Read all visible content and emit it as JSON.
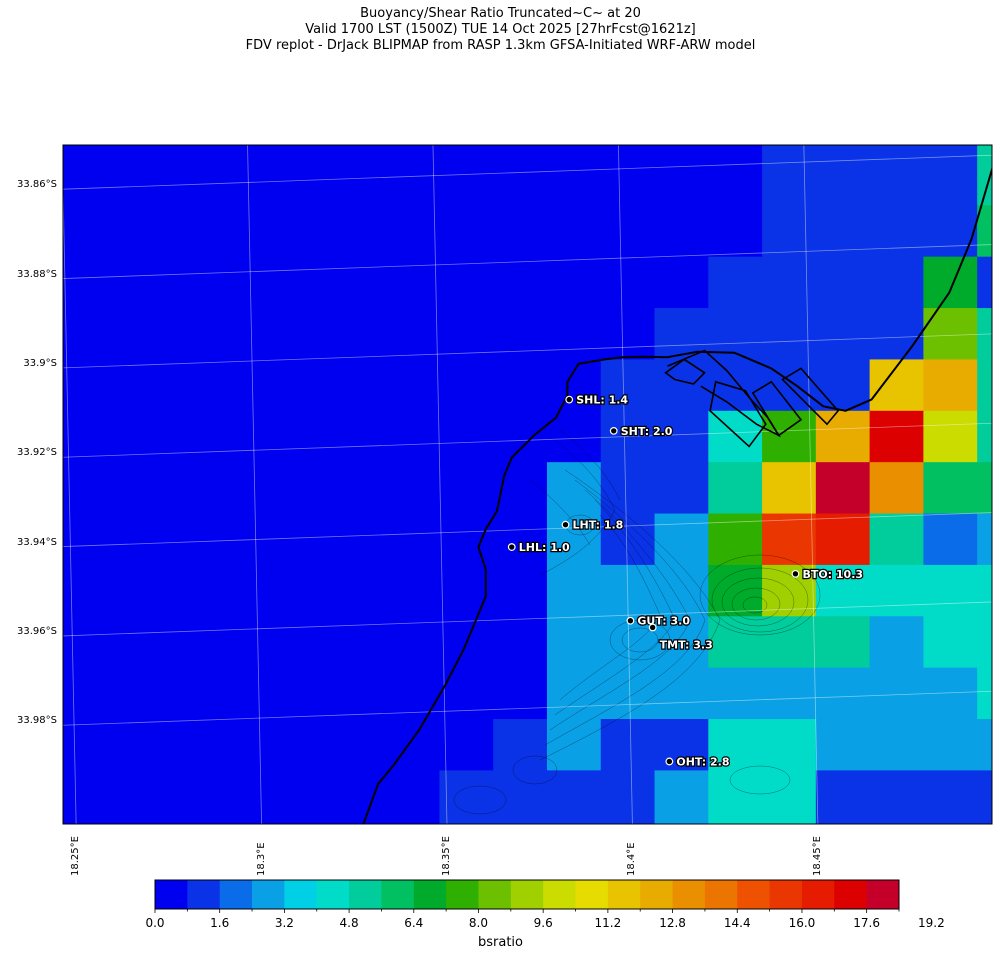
{
  "title_lines": [
    "Buoyancy/Shear Ratio Truncated~C~    at 20",
    "Valid 1700 LST (1500Z) TUE 14 Oct 2025 [27hrFcst@1621z]",
    "FDV replot - DrJack BLIPMAP from RASP 1.3km GFSA-Initiated WRF-ARW model"
  ],
  "map": {
    "lat_ticks": [
      "33.86°S",
      "33.88°S",
      "33.9°S",
      "33.92°S",
      "33.94°S",
      "33.96°S",
      "33.98°S"
    ],
    "lon_ticks": [
      "18.25°E",
      "18.3°E",
      "18.35°E",
      "18.4°E",
      "18.45°E"
    ],
    "extent": {
      "lon_min": 18.247,
      "lon_max": 18.4975,
      "lat_top": -33.851,
      "lat_bottom": -34.003
    },
    "grid_columns_lon": [
      18.247,
      18.2615,
      18.276,
      18.2905,
      18.305,
      18.3195,
      18.334,
      18.3485,
      18.363,
      18.3775,
      18.392,
      18.4065,
      18.421,
      18.4355,
      18.45,
      18.4645,
      18.479,
      18.4935,
      18.4975
    ],
    "grid_rows_lat": [
      -33.851,
      -33.853,
      -33.8645,
      -33.876,
      -33.8875,
      -33.899,
      -33.9105,
      -33.922,
      -33.9335,
      -33.945,
      -33.9565,
      -33.968,
      -33.9795,
      -33.991,
      -34.003
    ],
    "cells": [
      [
        0,
        0,
        0,
        0,
        0,
        0,
        0,
        0,
        0,
        0,
        0,
        0,
        0,
        1,
        1,
        1,
        1,
        6
      ],
      [
        0,
        0,
        0,
        0,
        0,
        0,
        0,
        0,
        0,
        0,
        0,
        0,
        0,
        1,
        1,
        1,
        1,
        6
      ],
      [
        0,
        0,
        0,
        0,
        0,
        0,
        0,
        0,
        0,
        0,
        0,
        0,
        0,
        1,
        1,
        1,
        1,
        7
      ],
      [
        0,
        0,
        0,
        0,
        0,
        0,
        0,
        0,
        0,
        0,
        0,
        0,
        1,
        1,
        1,
        1,
        8,
        1
      ],
      [
        0,
        0,
        0,
        0,
        0,
        0,
        0,
        0,
        0,
        0,
        0,
        1,
        1,
        1,
        1,
        1,
        10,
        6
      ],
      [
        0,
        0,
        0,
        0,
        0,
        0,
        0,
        0,
        0,
        0,
        1,
        1,
        1,
        1,
        1,
        14,
        15,
        6
      ],
      [
        0,
        0,
        0,
        0,
        0,
        0,
        0,
        0,
        0,
        0,
        1,
        1,
        5,
        9,
        15,
        21,
        12,
        6
      ],
      [
        0,
        0,
        0,
        0,
        0,
        0,
        0,
        0,
        0,
        3,
        1,
        1,
        6,
        14,
        22,
        16,
        7,
        7
      ],
      [
        0,
        0,
        0,
        0,
        0,
        0,
        0,
        0,
        0,
        3,
        1,
        3,
        9,
        19,
        20,
        6,
        2,
        3
      ],
      [
        0,
        0,
        0,
        0,
        0,
        0,
        0,
        0,
        0,
        3,
        3,
        3,
        8,
        11,
        5,
        5,
        5,
        5
      ],
      [
        0,
        0,
        0,
        0,
        0,
        0,
        0,
        0,
        0,
        3,
        3,
        3,
        6,
        6,
        6,
        3,
        5,
        5
      ],
      [
        0,
        0,
        0,
        0,
        0,
        0,
        0,
        0,
        0,
        3,
        3,
        3,
        3,
        3,
        3,
        3,
        3,
        5
      ],
      [
        0,
        0,
        0,
        0,
        0,
        0,
        0,
        0,
        1,
        3,
        1,
        1,
        5,
        5,
        3,
        3,
        3,
        3
      ],
      [
        0,
        0,
        0,
        0,
        0,
        0,
        0,
        1,
        1,
        1,
        1,
        3,
        5,
        5,
        1,
        1,
        1,
        1
      ]
    ],
    "coastline": [
      [
        18.498,
        -33.855
      ],
      [
        18.492,
        -33.872
      ],
      [
        18.486,
        -33.884
      ],
      [
        18.476,
        -33.896
      ],
      [
        18.465,
        -33.908
      ],
      [
        18.458,
        -33.9105
      ],
      [
        18.452,
        -33.9095
      ],
      [
        18.445,
        -33.905
      ],
      [
        18.438,
        -33.901
      ],
      [
        18.428,
        -33.8975
      ],
      [
        18.418,
        -33.8973
      ],
      [
        18.41,
        -33.8985
      ],
      [
        18.403,
        -33.8984
      ],
      [
        18.398,
        -33.8985
      ],
      [
        18.393,
        -33.899
      ],
      [
        18.386,
        -33.9
      ],
      [
        18.383,
        -33.904
      ],
      [
        18.383,
        -33.907
      ],
      [
        18.38,
        -33.912
      ],
      [
        18.374,
        -33.916
      ],
      [
        18.368,
        -33.921
      ],
      [
        18.366,
        -33.925
      ],
      [
        18.364,
        -33.933
      ],
      [
        18.361,
        -33.937
      ],
      [
        18.359,
        -33.941
      ],
      [
        18.361,
        -33.946
      ],
      [
        18.361,
        -33.952
      ],
      [
        18.358,
        -33.958
      ],
      [
        18.355,
        -33.964
      ],
      [
        18.35,
        -33.972
      ],
      [
        18.343,
        -33.982
      ],
      [
        18.336,
        -33.99
      ],
      [
        18.332,
        -33.994
      ],
      [
        18.328,
        -34.003
      ]
    ],
    "breakwater": [
      [
        18.41,
        -33.9005
      ],
      [
        18.42,
        -33.897
      ],
      [
        18.426,
        -33.9015
      ],
      [
        18.432,
        -33.9075
      ],
      [
        18.437,
        -33.912
      ],
      [
        18.44,
        -33.916
      ],
      [
        18.434,
        -33.9135
      ],
      [
        18.426,
        -33.9085
      ],
      [
        18.419,
        -33.905
      ]
    ],
    "harbour_basins": [
      [
        [
          18.4095,
          -33.902
        ],
        [
          18.4145,
          -33.899
        ],
        [
          18.42,
          -33.902
        ],
        [
          18.417,
          -33.9045
        ],
        [
          18.412,
          -33.9035
        ]
      ],
      [
        [
          18.423,
          -33.904
        ],
        [
          18.431,
          -33.906
        ],
        [
          18.4365,
          -33.9135
        ],
        [
          18.432,
          -33.9185
        ],
        [
          18.4215,
          -33.9105
        ]
      ],
      [
        [
          18.433,
          -33.9065
        ],
        [
          18.438,
          -33.904
        ],
        [
          18.446,
          -33.9125
        ],
        [
          18.44,
          -33.916
        ]
      ],
      [
        [
          18.441,
          -33.9035
        ],
        [
          18.446,
          -33.901
        ],
        [
          18.456,
          -33.9105
        ],
        [
          18.453,
          -33.9135
        ]
      ]
    ],
    "stations": [
      {
        "label": "SHL: 1.4",
        "lon": 18.3835,
        "lat": -33.908
      },
      {
        "label": "SHT: 2.0",
        "lon": 18.3955,
        "lat": -33.915
      },
      {
        "label": "LHT: 1.8",
        "lon": 18.3825,
        "lat": -33.936
      },
      {
        "label": "LHL: 1.0",
        "lon": 18.368,
        "lat": -33.941
      },
      {
        "label": "BTO: 10.3",
        "lon": 18.4445,
        "lat": -33.947
      },
      {
        "label": "GUT: 3.0",
        "lon": 18.4,
        "lat": -33.9575
      },
      {
        "label": "TMT: 3.3",
        "lon": 18.406,
        "lat": -33.959
      },
      {
        "label": "OHT: 2.8",
        "lon": 18.4105,
        "lat": -33.989
      }
    ]
  },
  "colorbar": {
    "label": "bsratio",
    "tick_labels": [
      "0.0",
      "1.6",
      "3.2",
      "4.8",
      "6.4",
      "8.0",
      "9.6",
      "11.2",
      "12.8",
      "14.4",
      "16.0",
      "17.6",
      "19.2"
    ],
    "min": 0.0,
    "max": 20.0,
    "step": 0.8,
    "colors": [
      "#0000f0",
      "#0a32e6",
      "#0a6ce9",
      "#0aa0e6",
      "#00d0e6",
      "#00dcc8",
      "#00cc9c",
      "#00c062",
      "#00aa2a",
      "#2fb000",
      "#6cc000",
      "#a0d000",
      "#cadc00",
      "#e6dc00",
      "#e8c400",
      "#e8ac00",
      "#ea9000",
      "#ec7400",
      "#ee5200",
      "#ea3600",
      "#e61c00",
      "#dc0000",
      "#c4002a"
    ]
  }
}
